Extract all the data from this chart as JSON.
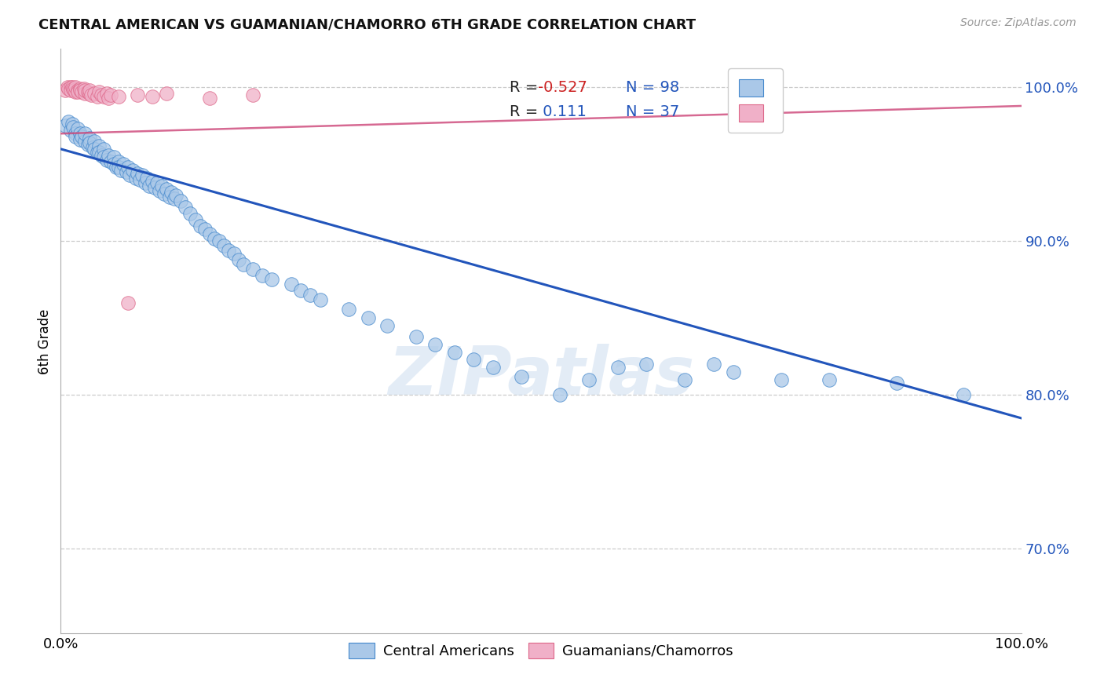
{
  "title": "CENTRAL AMERICAN VS GUAMANIAN/CHAMORRO 6TH GRADE CORRELATION CHART",
  "source": "Source: ZipAtlas.com",
  "ylabel": "6th Grade",
  "xlim": [
    0.0,
    1.0
  ],
  "ylim": [
    0.645,
    1.025
  ],
  "yticks": [
    0.7,
    0.8,
    0.9,
    1.0
  ],
  "ytick_labels": [
    "70.0%",
    "80.0%",
    "90.0%",
    "100.0%"
  ],
  "xtick_positions": [
    0.0,
    0.25,
    0.5,
    0.75,
    1.0
  ],
  "xtick_labels": [
    "0.0%",
    "",
    "",
    "",
    "100.0%"
  ],
  "blue_R": -0.527,
  "blue_N": 98,
  "pink_R": 0.111,
  "pink_N": 37,
  "blue_fill": "#aac8e8",
  "blue_edge": "#4488cc",
  "pink_fill": "#f0b0c8",
  "pink_edge": "#dd6688",
  "blue_line_color": "#2255bb",
  "pink_line_color": "#cc4477",
  "blue_scatter_x": [
    0.005,
    0.008,
    0.01,
    0.012,
    0.013,
    0.015,
    0.015,
    0.018,
    0.02,
    0.02,
    0.022,
    0.025,
    0.025,
    0.028,
    0.03,
    0.03,
    0.033,
    0.035,
    0.035,
    0.038,
    0.04,
    0.04,
    0.042,
    0.045,
    0.045,
    0.048,
    0.05,
    0.052,
    0.055,
    0.055,
    0.058,
    0.06,
    0.06,
    0.063,
    0.065,
    0.068,
    0.07,
    0.072,
    0.075,
    0.078,
    0.08,
    0.082,
    0.085,
    0.088,
    0.09,
    0.092,
    0.095,
    0.098,
    0.1,
    0.103,
    0.105,
    0.108,
    0.11,
    0.113,
    0.115,
    0.118,
    0.12,
    0.125,
    0.13,
    0.135,
    0.14,
    0.145,
    0.15,
    0.155,
    0.16,
    0.165,
    0.17,
    0.175,
    0.18,
    0.185,
    0.19,
    0.2,
    0.21,
    0.22,
    0.24,
    0.25,
    0.26,
    0.27,
    0.3,
    0.32,
    0.34,
    0.37,
    0.39,
    0.41,
    0.43,
    0.45,
    0.48,
    0.52,
    0.55,
    0.58,
    0.61,
    0.65,
    0.68,
    0.7,
    0.75,
    0.8,
    0.87,
    0.94
  ],
  "blue_scatter_y": [
    0.975,
    0.978,
    0.972,
    0.976,
    0.974,
    0.97,
    0.968,
    0.973,
    0.97,
    0.966,
    0.968,
    0.965,
    0.97,
    0.963,
    0.967,
    0.964,
    0.961,
    0.965,
    0.96,
    0.958,
    0.962,
    0.958,
    0.956,
    0.96,
    0.955,
    0.953,
    0.956,
    0.952,
    0.955,
    0.95,
    0.948,
    0.952,
    0.948,
    0.946,
    0.95,
    0.945,
    0.948,
    0.943,
    0.946,
    0.941,
    0.944,
    0.94,
    0.943,
    0.938,
    0.941,
    0.936,
    0.939,
    0.935,
    0.938,
    0.933,
    0.936,
    0.931,
    0.934,
    0.929,
    0.932,
    0.928,
    0.93,
    0.926,
    0.922,
    0.918,
    0.914,
    0.91,
    0.908,
    0.905,
    0.902,
    0.9,
    0.897,
    0.894,
    0.892,
    0.888,
    0.885,
    0.882,
    0.878,
    0.875,
    0.872,
    0.868,
    0.865,
    0.862,
    0.856,
    0.85,
    0.845,
    0.838,
    0.833,
    0.828,
    0.823,
    0.818,
    0.812,
    0.8,
    0.81,
    0.818,
    0.82,
    0.81,
    0.82,
    0.815,
    0.81,
    0.81,
    0.808,
    0.8
  ],
  "pink_scatter_x": [
    0.005,
    0.007,
    0.008,
    0.01,
    0.01,
    0.012,
    0.013,
    0.014,
    0.015,
    0.015,
    0.018,
    0.018,
    0.02,
    0.02,
    0.022,
    0.024,
    0.025,
    0.025,
    0.028,
    0.03,
    0.03,
    0.032,
    0.035,
    0.038,
    0.04,
    0.042,
    0.045,
    0.048,
    0.05,
    0.052,
    0.06,
    0.07,
    0.08,
    0.095,
    0.11,
    0.155,
    0.2
  ],
  "pink_scatter_y": [
    0.998,
    1.0,
    0.999,
    1.0,
    0.998,
    1.0,
    0.999,
    0.998,
    0.997,
    1.0,
    0.998,
    0.997,
    0.999,
    0.998,
    0.997,
    0.999,
    0.996,
    0.998,
    0.997,
    0.996,
    0.998,
    0.995,
    0.996,
    0.994,
    0.997,
    0.995,
    0.994,
    0.996,
    0.993,
    0.995,
    0.994,
    0.86,
    0.995,
    0.994,
    0.996,
    0.993,
    0.995
  ],
  "blue_line_x": [
    0.0,
    1.0
  ],
  "blue_line_y": [
    0.96,
    0.785
  ],
  "pink_line_x": [
    0.0,
    1.0
  ],
  "pink_line_y": [
    0.97,
    0.988
  ],
  "watermark": "ZIPatlas",
  "legend_ca": "Central Americans",
  "legend_gc": "Guamanians/Chamorros"
}
